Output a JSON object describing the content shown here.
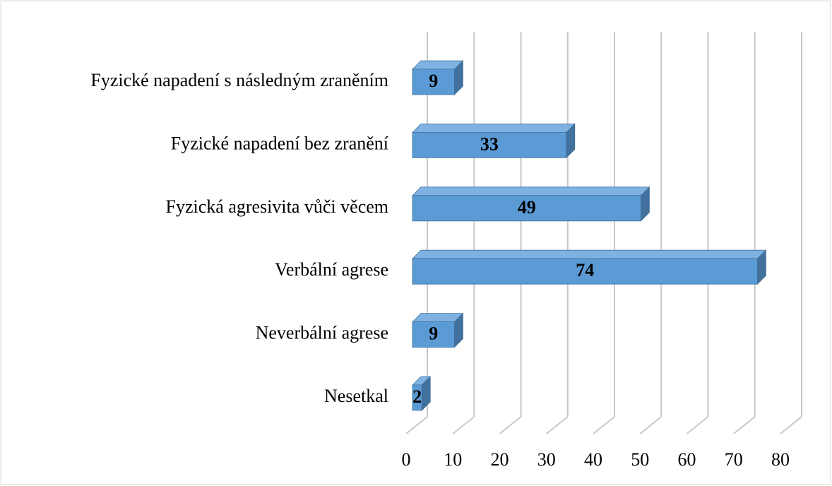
{
  "chart_data": {
    "type": "bar3d_horizontal",
    "categories": [
      "Fyzické napadení s následným zraněním",
      "Fyzické napadení bez zranění",
      "Fyzická agresivita vůči věcem",
      "Verbální agrese",
      "Neverbální agrese",
      "Nesetkal"
    ],
    "values": [
      9,
      33,
      49,
      74,
      9,
      2
    ],
    "color": "#5b9bd5",
    "xlim": [
      0,
      80
    ],
    "xticks": [
      0,
      10,
      20,
      30,
      40,
      50,
      60,
      70,
      80
    ],
    "grid": true
  }
}
